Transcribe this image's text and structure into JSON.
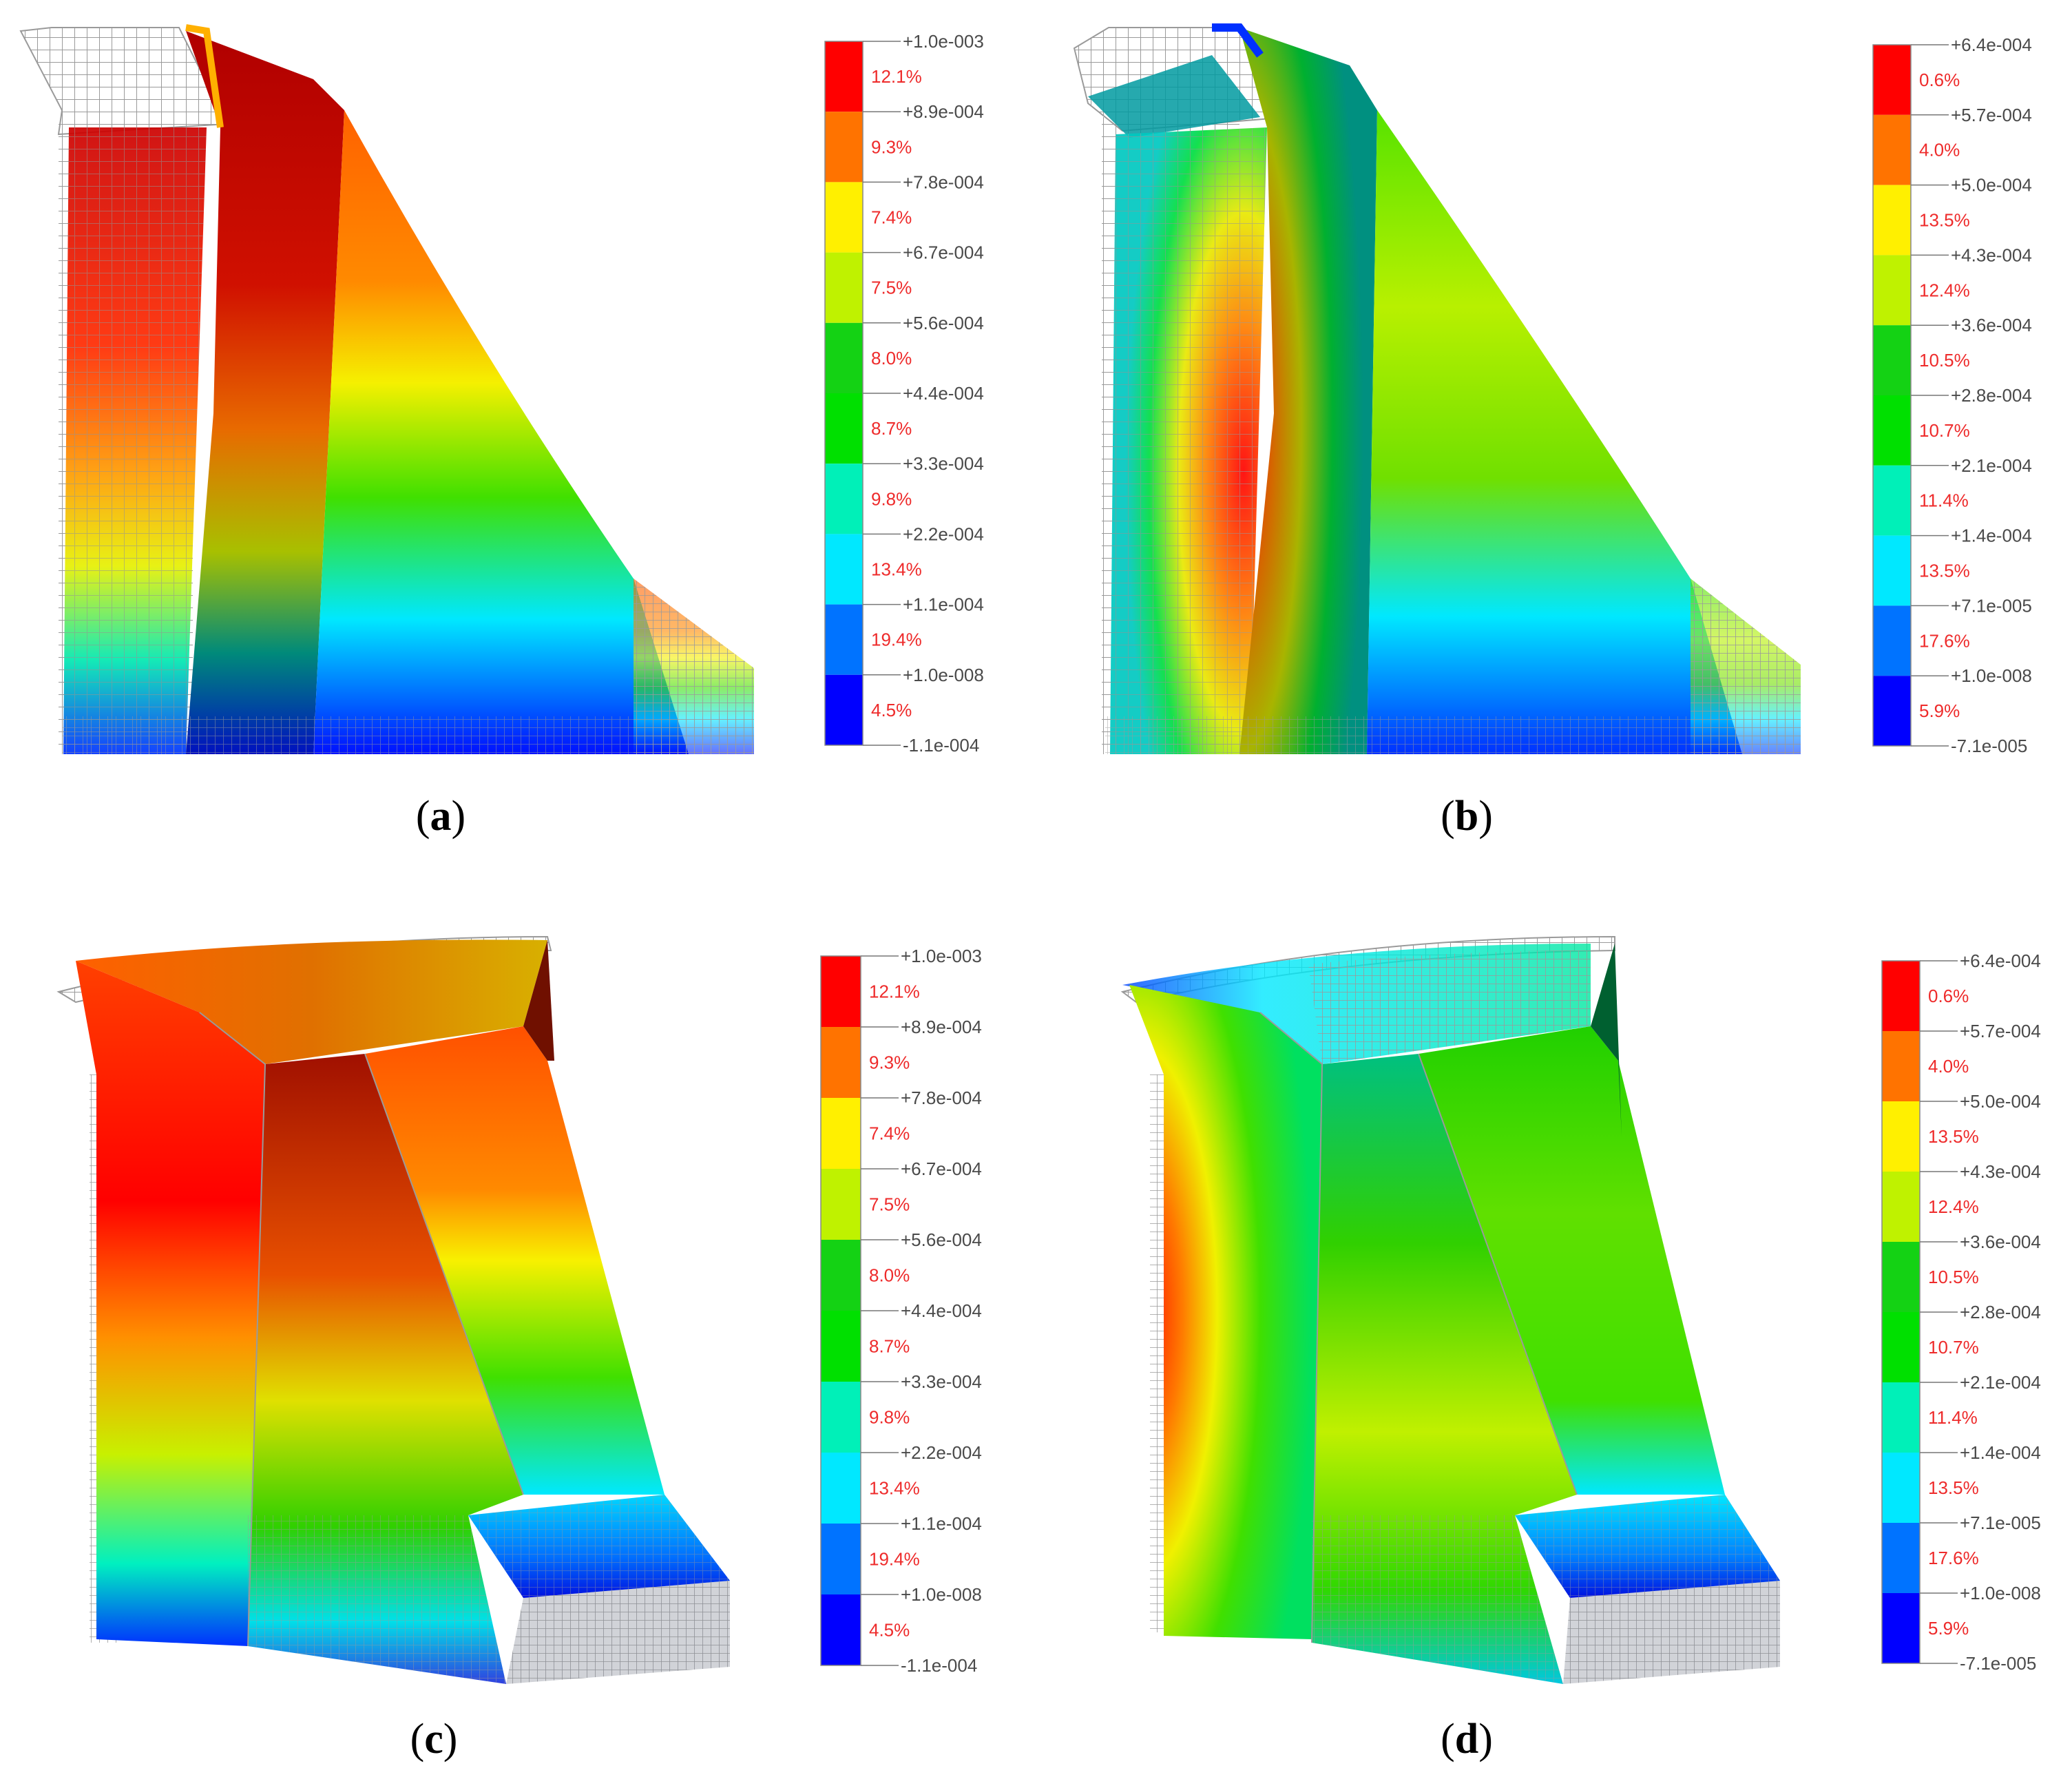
{
  "colors": {
    "scale": [
      "#0000ff",
      "#0073ff",
      "#00e8ff",
      "#00f0b8",
      "#00e000",
      "#14d214",
      "#bff200",
      "#fff000",
      "#ff7300",
      "#ff0000"
    ],
    "mesh": "#9a9a9a",
    "percent_text": "#ee2b2b"
  },
  "panels": [
    {
      "caption": "a",
      "legend": {
        "ticks": [
          "+1.0e-003",
          "+8.9e-004",
          "+7.8e-004",
          "+6.7e-004",
          "+5.6e-004",
          "+4.4e-004",
          "+3.3e-004",
          "+2.2e-004",
          "+1.1e-004",
          "+1.0e-008",
          "-1.1e-004"
        ],
        "percents": [
          "12.1%",
          "9.3%",
          "7.4%",
          "7.5%",
          "8.0%",
          "8.7%",
          "9.8%",
          "13.4%",
          "19.4%",
          "4.5%"
        ]
      }
    },
    {
      "caption": "b",
      "legend": {
        "ticks": [
          "+6.4e-004",
          "+5.7e-004",
          "+5.0e-004",
          "+4.3e-004",
          "+3.6e-004",
          "+2.8e-004",
          "+2.1e-004",
          "+1.4e-004",
          "+7.1e-005",
          "+1.0e-008",
          "-7.1e-005"
        ],
        "percents": [
          "0.6%",
          "4.0%",
          "13.5%",
          "12.4%",
          "10.5%",
          "10.7%",
          "11.4%",
          "13.5%",
          "17.6%",
          "5.9%"
        ]
      }
    },
    {
      "caption": "c",
      "legend": {
        "ticks": [
          "+1.0e-003",
          "+8.9e-004",
          "+7.8e-004",
          "+6.7e-004",
          "+5.6e-004",
          "+4.4e-004",
          "+3.3e-004",
          "+2.2e-004",
          "+1.1e-004",
          "+1.0e-008",
          "-1.1e-004"
        ],
        "percents": [
          "12.1%",
          "9.3%",
          "7.4%",
          "7.5%",
          "8.0%",
          "8.7%",
          "9.8%",
          "13.4%",
          "19.4%",
          "4.5%"
        ]
      }
    },
    {
      "caption": "d",
      "legend": {
        "ticks": [
          "+6.4e-004",
          "+5.7e-004",
          "+5.0e-004",
          "+4.3e-004",
          "+3.6e-004",
          "+2.8e-004",
          "+2.1e-004",
          "+1.4e-004",
          "+7.1e-005",
          "+1.0e-008",
          "-7.1e-005"
        ],
        "percents": [
          "0.6%",
          "4.0%",
          "13.5%",
          "12.4%",
          "10.5%",
          "10.7%",
          "11.4%",
          "13.5%",
          "17.6%",
          "5.9%"
        ]
      }
    }
  ]
}
